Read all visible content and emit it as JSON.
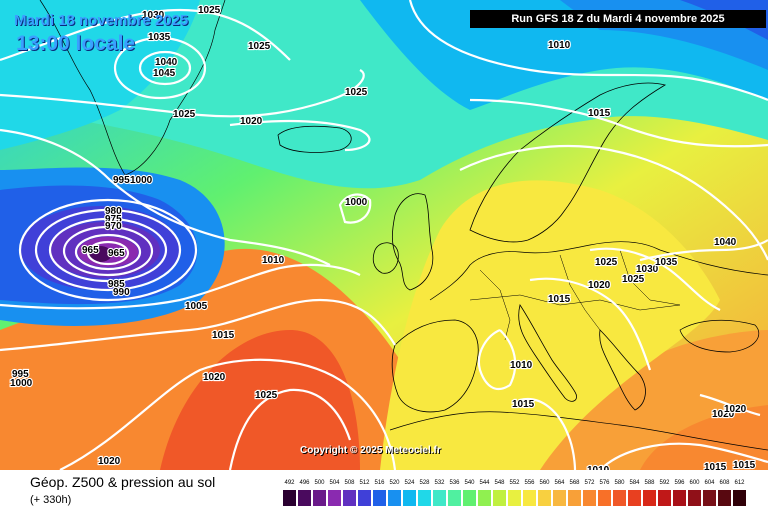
{
  "header": {
    "date": "Mardi 18 novembre 2025",
    "local_time": "13:00 locale",
    "run": "Run GFS 18 Z du Mardi 4 novembre 2025"
  },
  "copyright": "Copyright © 2025 Meteociel.fr",
  "footer": {
    "title": "Géop. Z500 & pression au sol",
    "subtitle": "(+ 330h)"
  },
  "scale": {
    "labels": [
      "492",
      "496",
      "500",
      "504",
      "508",
      "512",
      "516",
      "520",
      "524",
      "528",
      "532",
      "536",
      "540",
      "544",
      "548",
      "552",
      "556",
      "560",
      "564",
      "568",
      "572",
      "576",
      "580",
      "584",
      "588",
      "592",
      "596",
      "600",
      "604",
      "608",
      "612"
    ],
    "colors": [
      "#2a0030",
      "#4a0a5e",
      "#6a1a8a",
      "#8a2ab0",
      "#6030c0",
      "#4040d8",
      "#2060e8",
      "#1890f0",
      "#10b8f0",
      "#20d8e8",
      "#40e8c8",
      "#50f0a0",
      "#60f070",
      "#90f050",
      "#c0f040",
      "#e8f040",
      "#f8e840",
      "#f8d040",
      "#f8b840",
      "#f8a038",
      "#f88830",
      "#f87028",
      "#f05828",
      "#e84020",
      "#d82818",
      "#c01818",
      "#a81018",
      "#901018",
      "#781018",
      "#580810",
      "#300008"
    ]
  },
  "isobar_labels": [
    "1030",
    "1025",
    "1035",
    "1040",
    "1045",
    "1025",
    "1025",
    "1025",
    "1020",
    "1010",
    "1015",
    "995",
    "1000",
    "980",
    "975",
    "970",
    "965",
    "965",
    "985",
    "990",
    "1000",
    "1010",
    "1005",
    "1015",
    "995",
    "1000",
    "1020",
    "1025",
    "1020",
    "1025",
    "1020",
    "1025",
    "1030",
    "1035",
    "1040",
    "1015",
    "1010",
    "1015",
    "1010",
    "1015",
    "1015",
    "1020",
    "1020"
  ]
}
